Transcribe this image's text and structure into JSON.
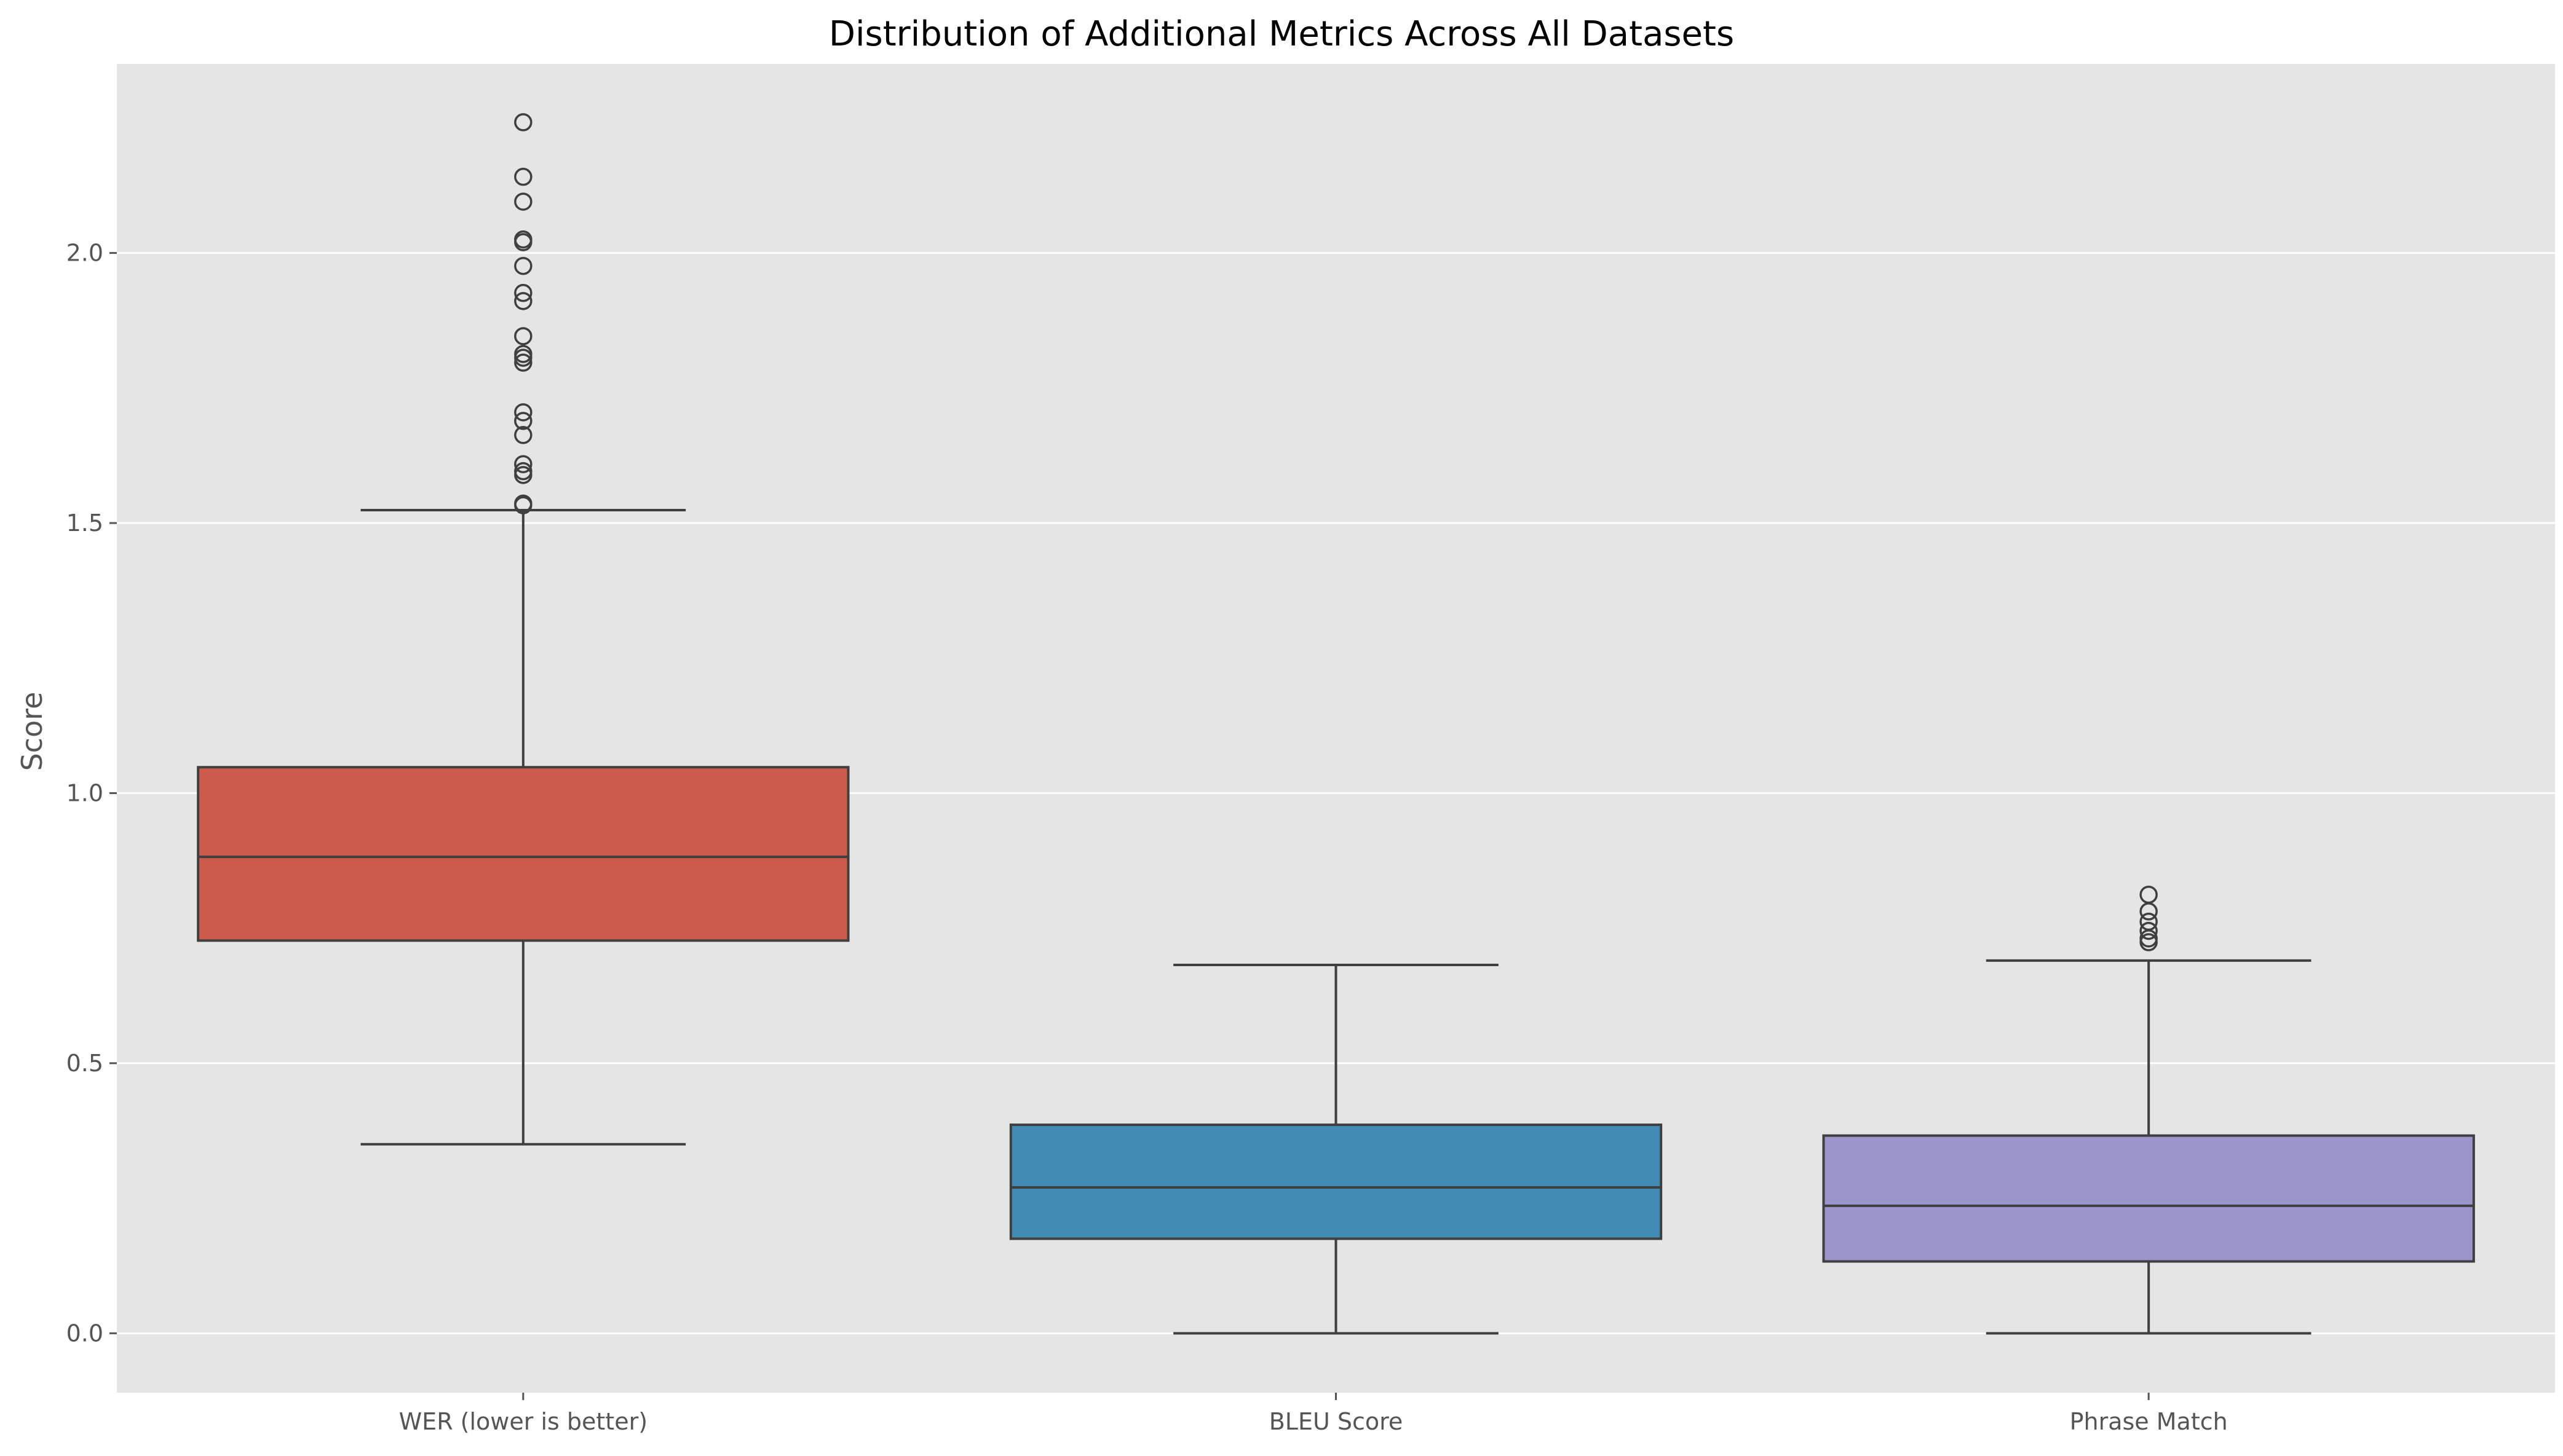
{
  "chart_data": {
    "type": "box",
    "title": "Distribution of Additional Metrics Across All Datasets",
    "xlabel": "",
    "ylabel": "Score",
    "ylim": [
      -0.11,
      2.35
    ],
    "yticks": [
      0.0,
      0.5,
      1.0,
      1.5,
      2.0
    ],
    "ytick_labels": [
      "0.0",
      "0.5",
      "1.0",
      "1.5",
      "2.0"
    ],
    "grid": true,
    "categories": [
      "WER (lower is better)",
      "BLEU Score",
      "Phrase Match"
    ],
    "boxes": [
      {
        "category": "WER (lower is better)",
        "whisker_low": 0.35,
        "q1": 0.727,
        "median": 0.882,
        "q3": 1.048,
        "whisker_high": 1.524,
        "outliers": [
          1.533,
          1.536,
          1.589,
          1.596,
          1.609,
          1.663,
          1.689,
          1.705,
          1.797,
          1.806,
          1.813,
          1.846,
          1.911,
          1.926,
          1.976,
          2.02,
          2.025,
          2.095,
          2.141,
          2.242
        ],
        "color": "#cd5b4b"
      },
      {
        "category": "BLEU Score",
        "whisker_low": 0.0,
        "q1": 0.175,
        "median": 0.27,
        "q3": 0.386,
        "whisker_high": 0.682,
        "outliers": [],
        "color": "#428bb4"
      },
      {
        "category": "Phrase Match",
        "whisker_low": 0.0,
        "q1": 0.133,
        "median": 0.236,
        "q3": 0.366,
        "whisker_high": 0.69,
        "outliers": [
          0.724,
          0.731,
          0.745,
          0.762,
          0.781,
          0.812
        ],
        "color": "#9c95cb"
      }
    ],
    "colors": {
      "plot_background": "#e5e5e5",
      "grid": "#ffffff",
      "box_edge": "#3f3f3f"
    }
  }
}
